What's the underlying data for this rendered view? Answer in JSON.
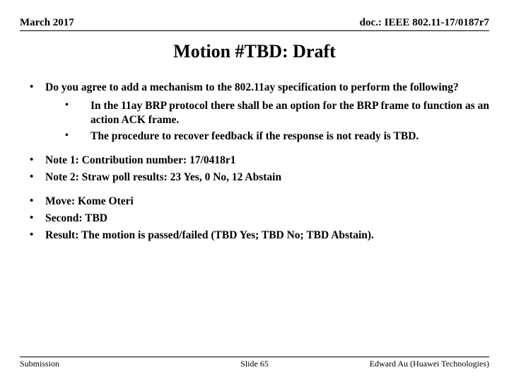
{
  "header": {
    "left": "March 2017",
    "right": "doc.: IEEE 802.11-17/0187r7"
  },
  "title": "Motion #TBD: Draft",
  "main_question": "Do you agree to add a mechanism to the 802.11ay specification to perform the following?",
  "sub_points": [
    "In the 11ay BRP protocol there shall be an option for the BRP frame to function as an action ACK frame.",
    "The procedure to recover feedback if the response is not ready is TBD."
  ],
  "notes": [
    "Note 1:  Contribution number:  17/0418r1",
    "Note 2:  Straw poll results:  23 Yes, 0 No, 12 Abstain"
  ],
  "motion": [
    "Move:  Kome Oteri",
    "Second:  TBD",
    "Result:  The motion is passed/failed (TBD Yes;  TBD No;  TBD Abstain)."
  ],
  "footer": {
    "left": "Submission",
    "center": "Slide 65",
    "right": "Edward Au (Huawei Technologies)"
  }
}
